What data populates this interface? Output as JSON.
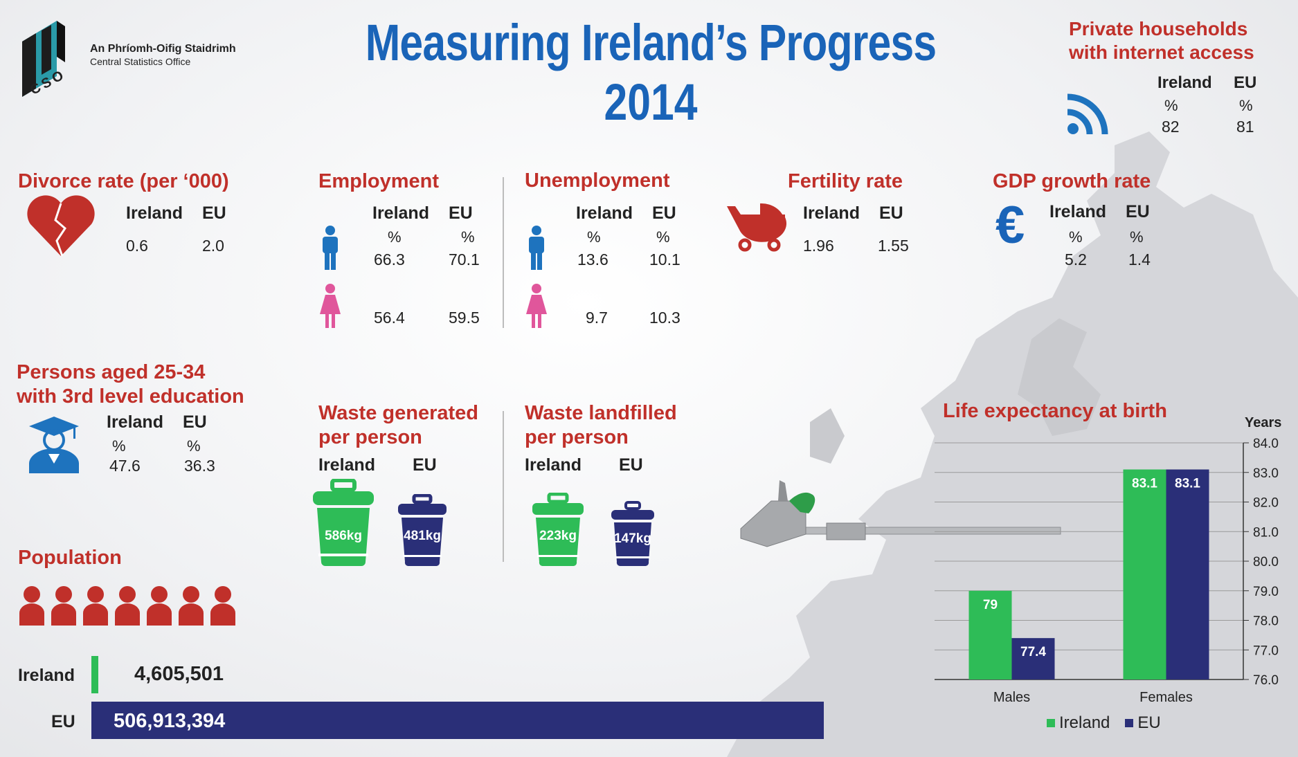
{
  "colors": {
    "ireland": "#2ebc57",
    "eu": "#2a2f78",
    "title_blue": "#1a64b8",
    "section_red": "#c0302a",
    "male_blue": "#1e73be",
    "female_pink": "#e0569b"
  },
  "logo": {
    "irish_name": "An Phríomh-Oifig Staidrimh",
    "english_name": "Central Statistics Office",
    "mark_letters": "CSO"
  },
  "title": {
    "line1": "Measuring Ireland’s Progress",
    "line2": "2014"
  },
  "internet": {
    "title_line1": "Private households",
    "title_line2": "with internet access",
    "col_ireland": "Ireland",
    "col_eu": "EU",
    "unit": "%",
    "ireland": "82",
    "eu": "81",
    "icon": "wifi-icon"
  },
  "divorce": {
    "title": "Divorce rate (per ‘000)",
    "col_ireland": "Ireland",
    "col_eu": "EU",
    "ireland": "0.6",
    "eu": "2.0",
    "icon": "broken-heart-icon"
  },
  "employment": {
    "title": "Employment",
    "col_ireland": "Ireland",
    "col_eu": "EU",
    "unit": "%",
    "male_ireland": "66.3",
    "male_eu": "70.1",
    "female_ireland": "56.4",
    "female_eu": "59.5"
  },
  "unemployment": {
    "title": "Unemployment",
    "col_ireland": "Ireland",
    "col_eu": "EU",
    "unit": "%",
    "male_ireland": "13.6",
    "male_eu": "10.1",
    "female_ireland": "9.7",
    "female_eu": "10.3"
  },
  "fertility": {
    "title": "Fertility rate",
    "col_ireland": "Ireland",
    "col_eu": "EU",
    "ireland": "1.96",
    "eu": "1.55",
    "icon": "pram-icon"
  },
  "gdp": {
    "title": "GDP growth rate",
    "col_ireland": "Ireland",
    "col_eu": "EU",
    "unit": "%",
    "ireland": "5.2",
    "eu": "1.4",
    "icon": "euro-icon"
  },
  "education": {
    "title_line1": "Persons aged 25-34",
    "title_line2": "with 3rd level education",
    "col_ireland": "Ireland",
    "col_eu": "EU",
    "unit": "%",
    "ireland": "47.6",
    "eu": "36.3",
    "icon": "graduate-icon"
  },
  "waste_generated": {
    "title_line1": "Waste generated",
    "title_line2": "per person",
    "col_ireland": "Ireland",
    "col_eu": "EU",
    "ireland": "586kg",
    "eu": "481kg"
  },
  "waste_landfilled": {
    "title_line1": "Waste landfilled",
    "title_line2": "per person",
    "col_ireland": "Ireland",
    "col_eu": "EU",
    "ireland": "223kg",
    "eu": "147kg"
  },
  "population": {
    "title": "Population",
    "label_ireland": "Ireland",
    "label_eu": "EU",
    "ireland": "4,605,501",
    "eu": "506,913,394",
    "ireland_value": 4605501,
    "eu_value": 506913394,
    "people_icons": 7
  },
  "chart_data": {
    "type": "bar",
    "title": "Life expectancy at birth",
    "ylabel": "Years",
    "categories": [
      "Males",
      "Females"
    ],
    "series": [
      {
        "name": "Ireland",
        "values": [
          79,
          83.1
        ],
        "labels": [
          "79",
          "83.1"
        ]
      },
      {
        "name": "EU",
        "values": [
          77.4,
          83.1
        ],
        "labels": [
          "77.4",
          "83.1"
        ]
      }
    ],
    "ylim": [
      76.0,
      84.0
    ],
    "yticks": [
      "76.0",
      "77.0",
      "78.0",
      "79.0",
      "80.0",
      "81.0",
      "82.0",
      "83.0",
      "84.0"
    ],
    "grid": true,
    "legend": "bottom"
  }
}
